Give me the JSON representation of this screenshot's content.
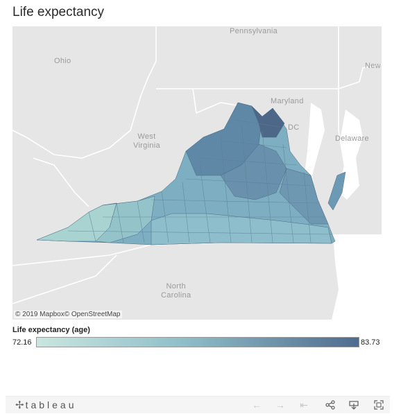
{
  "title": "Life expectancy",
  "map": {
    "labels": {
      "pennsylvania": "Pennsylvania",
      "ohio": "Ohio",
      "maryland": "Maryland",
      "new": "New",
      "dc": "DC",
      "west_virginia": "West\nVirginia",
      "delaware": "Delaware",
      "north_carolina": "North\nCarolina"
    },
    "attribution": "© 2019 Mapbox© OpenStreetMap"
  },
  "legend": {
    "title": "Life expectancy (age)",
    "min_label": "72.16",
    "max_label": "83.73",
    "color_low": "#c9e6df",
    "color_high": "#4f6b8f"
  },
  "colors": {
    "map_background": "#e8e8e8",
    "state_fill_light": "#a8cfcf",
    "state_fill_mid": "#6e9fb7",
    "state_fill_dark": "#4f6b8f"
  },
  "toolbar": {
    "logo_text": "tableau",
    "logo_icon": "tableau-cross-icon",
    "buttons": [
      {
        "name": "undo-button",
        "icon": "arrow-left-icon",
        "glyph": "←",
        "enabled": false
      },
      {
        "name": "redo-button",
        "icon": "arrow-right-icon",
        "glyph": "→",
        "enabled": false
      },
      {
        "name": "revert-button",
        "icon": "revert-icon",
        "glyph": "⇤",
        "enabled": false
      },
      {
        "name": "share-button",
        "icon": "share-icon",
        "glyph": "",
        "enabled": true
      },
      {
        "name": "download-button",
        "icon": "download-icon",
        "glyph": "",
        "enabled": true
      },
      {
        "name": "fullscreen-button",
        "icon": "fullscreen-icon",
        "glyph": "",
        "enabled": true
      }
    ]
  }
}
